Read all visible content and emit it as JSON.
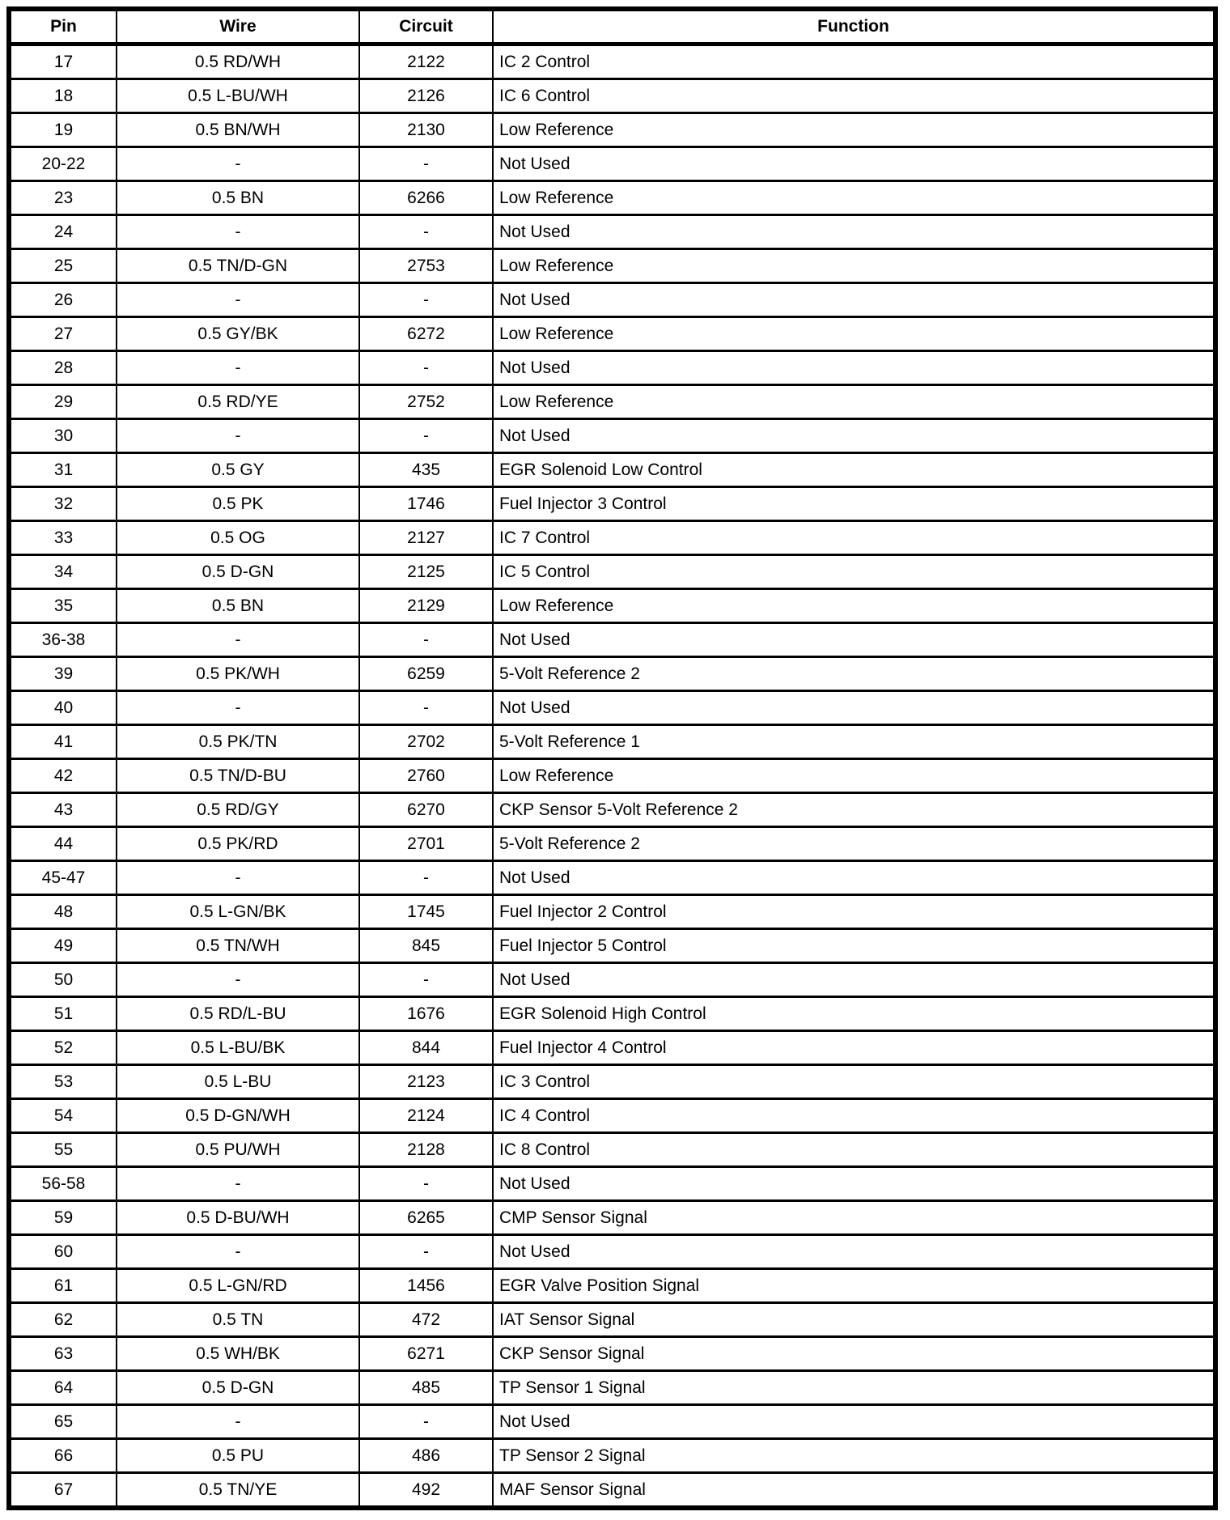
{
  "document": {
    "title": "connector-pinout-table",
    "colors": {
      "background": "#ffffff",
      "text": "#000000",
      "border": "#000000"
    },
    "columns": [
      "Pin",
      "Wire",
      "Circuit",
      "Function"
    ],
    "rows": [
      [
        "17",
        "0.5 RD/WH",
        "2122",
        "IC 2 Control"
      ],
      [
        "18",
        "0.5 L-BU/WH",
        "2126",
        "IC 6 Control"
      ],
      [
        "19",
        "0.5 BN/WH",
        "2130",
        "Low Reference"
      ],
      [
        "20-22",
        "-",
        "-",
        "Not Used"
      ],
      [
        "23",
        "0.5 BN",
        "6266",
        "Low Reference"
      ],
      [
        "24",
        "-",
        "-",
        "Not Used"
      ],
      [
        "25",
        "0.5 TN/D-GN",
        "2753",
        "Low Reference"
      ],
      [
        "26",
        "-",
        "-",
        "Not Used"
      ],
      [
        "27",
        "0.5 GY/BK",
        "6272",
        "Low Reference"
      ],
      [
        "28",
        "-",
        "-",
        "Not Used"
      ],
      [
        "29",
        "0.5 RD/YE",
        "2752",
        "Low Reference"
      ],
      [
        "30",
        "-",
        "-",
        "Not Used"
      ],
      [
        "31",
        "0.5 GY",
        "435",
        "EGR Solenoid Low Control"
      ],
      [
        "32",
        "0.5 PK",
        "1746",
        "Fuel Injector 3 Control"
      ],
      [
        "33",
        "0.5 OG",
        "2127",
        "IC 7 Control"
      ],
      [
        "34",
        "0.5 D-GN",
        "2125",
        "IC 5 Control"
      ],
      [
        "35",
        "0.5 BN",
        "2129",
        "Low Reference"
      ],
      [
        "36-38",
        "-",
        "-",
        "Not Used"
      ],
      [
        "39",
        "0.5 PK/WH",
        "6259",
        "5-Volt Reference 2"
      ],
      [
        "40",
        "-",
        "-",
        "Not Used"
      ],
      [
        "41",
        "0.5 PK/TN",
        "2702",
        "5-Volt Reference 1"
      ],
      [
        "42",
        "0.5 TN/D-BU",
        "2760",
        "Low Reference"
      ],
      [
        "43",
        "0.5 RD/GY",
        "6270",
        "CKP Sensor 5-Volt Reference 2"
      ],
      [
        "44",
        "0.5 PK/RD",
        "2701",
        "5-Volt Reference 2"
      ],
      [
        "45-47",
        "-",
        "-",
        "Not Used"
      ],
      [
        "48",
        "0.5 L-GN/BK",
        "1745",
        "Fuel Injector 2 Control"
      ],
      [
        "49",
        "0.5 TN/WH",
        "845",
        "Fuel Injector 5 Control"
      ],
      [
        "50",
        "-",
        "-",
        "Not Used"
      ],
      [
        "51",
        "0.5 RD/L-BU",
        "1676",
        "EGR Solenoid High Control"
      ],
      [
        "52",
        "0.5 L-BU/BK",
        "844",
        "Fuel Injector 4 Control"
      ],
      [
        "53",
        "0.5 L-BU",
        "2123",
        "IC 3 Control"
      ],
      [
        "54",
        "0.5 D-GN/WH",
        "2124",
        "IC 4 Control"
      ],
      [
        "55",
        "0.5 PU/WH",
        "2128",
        "IC 8 Control"
      ],
      [
        "56-58",
        "-",
        "-",
        "Not Used"
      ],
      [
        "59",
        "0.5 D-BU/WH",
        "6265",
        "CMP Sensor Signal"
      ],
      [
        "60",
        "-",
        "-",
        "Not Used"
      ],
      [
        "61",
        "0.5 L-GN/RD",
        "1456",
        "EGR Valve Position Signal"
      ],
      [
        "62",
        "0.5 TN",
        "472",
        "IAT Sensor Signal"
      ],
      [
        "63",
        "0.5 WH/BK",
        "6271",
        "CKP Sensor Signal"
      ],
      [
        "64",
        "0.5 D-GN",
        "485",
        "TP Sensor 1 Signal"
      ],
      [
        "65",
        "-",
        "-",
        "Not Used"
      ],
      [
        "66",
        "0.5 PU",
        "486",
        "TP Sensor 2 Signal"
      ],
      [
        "67",
        "0.5 TN/YE",
        "492",
        "MAF Sensor Signal"
      ]
    ]
  }
}
